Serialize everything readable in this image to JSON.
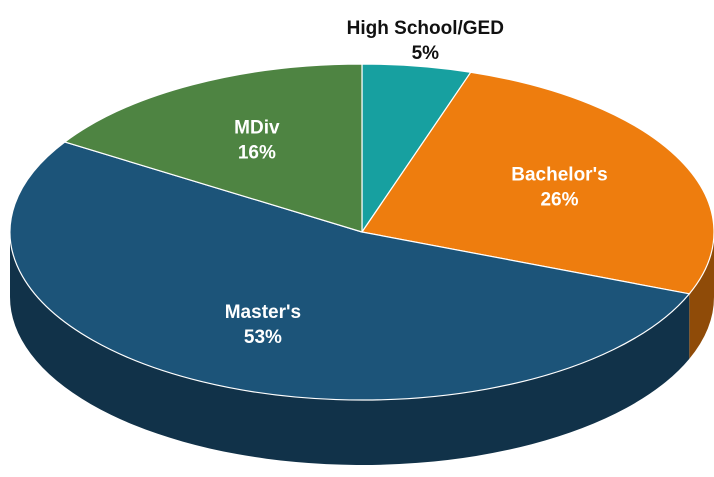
{
  "chart_data": {
    "type": "pie",
    "categories": [
      "High School/GED",
      "Bachelor's",
      "Master's",
      "MDiv"
    ],
    "values": [
      5,
      26,
      53,
      16
    ],
    "value_labels": [
      "5%",
      "26%",
      "53%",
      "16%"
    ],
    "colors": [
      "#17a0a0",
      "#ee7d0e",
      "#1c5479",
      "#4e8442"
    ]
  }
}
